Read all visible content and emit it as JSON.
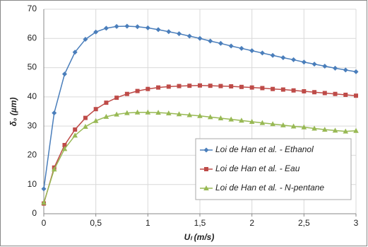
{
  "chart_data": {
    "type": "line",
    "x": [
      0,
      0.1,
      0.2,
      0.3,
      0.4,
      0.5,
      0.6,
      0.7,
      0.8,
      0.9,
      1,
      1.1,
      1.2,
      1.3,
      1.4,
      1.5,
      1.6,
      1.7,
      1.8,
      1.9,
      2,
      2.1,
      2.2,
      2.3,
      2.4,
      2.5,
      2.6,
      2.7,
      2.8,
      2.9,
      3
    ],
    "series": [
      {
        "name": "Loi de Han et al. - Ethanol",
        "color": "#4a7ebb",
        "marker": "diamond",
        "values": [
          8.5,
          34.5,
          47.8,
          55.3,
          59.7,
          62.2,
          63.5,
          64.1,
          64.2,
          64.0,
          63.6,
          63.0,
          62.3,
          61.6,
          60.8,
          60.0,
          59.1,
          58.3,
          57.4,
          56.6,
          55.8,
          55.0,
          54.2,
          53.4,
          52.7,
          51.9,
          51.2,
          50.5,
          49.8,
          49.2,
          48.6
        ]
      },
      {
        "name": "Loi de Han et al. - Eau",
        "color": "#be4b48",
        "marker": "square",
        "values": [
          3.5,
          15.8,
          23.5,
          28.8,
          32.8,
          35.8,
          38.0,
          39.7,
          41.0,
          42.0,
          42.7,
          43.2,
          43.5,
          43.7,
          43.8,
          43.9,
          43.8,
          43.7,
          43.6,
          43.4,
          43.2,
          43.0,
          42.7,
          42.5,
          42.2,
          41.9,
          41.6,
          41.3,
          41.0,
          40.7,
          40.4
        ]
      },
      {
        "name": "Loi de Han et al. - N-pentane",
        "color": "#98b954",
        "marker": "triangle",
        "values": [
          3.8,
          15.2,
          22.2,
          26.8,
          29.8,
          31.8,
          33.2,
          34.0,
          34.5,
          34.7,
          34.7,
          34.6,
          34.4,
          34.1,
          33.8,
          33.5,
          33.1,
          32.7,
          32.3,
          31.9,
          31.5,
          31.1,
          30.7,
          30.3,
          29.9,
          29.6,
          29.2,
          28.8,
          28.5,
          28.2,
          28.4
        ]
      }
    ],
    "x_label": "Uₗ (m/s)",
    "y_label": "δ₀ (µm)",
    "xlim": [
      0,
      3
    ],
    "ylim": [
      0,
      70
    ],
    "xticks": [
      0,
      {
        "value": 0.5,
        "label": "0,5"
      },
      1,
      {
        "value": 1.5,
        "label": "1,5"
      },
      2,
      {
        "value": 2.5,
        "label": "2,5"
      },
      3
    ],
    "yticks": [
      0,
      10,
      20,
      30,
      40,
      50,
      60,
      70
    ],
    "grid": true,
    "legend": "lower right"
  }
}
